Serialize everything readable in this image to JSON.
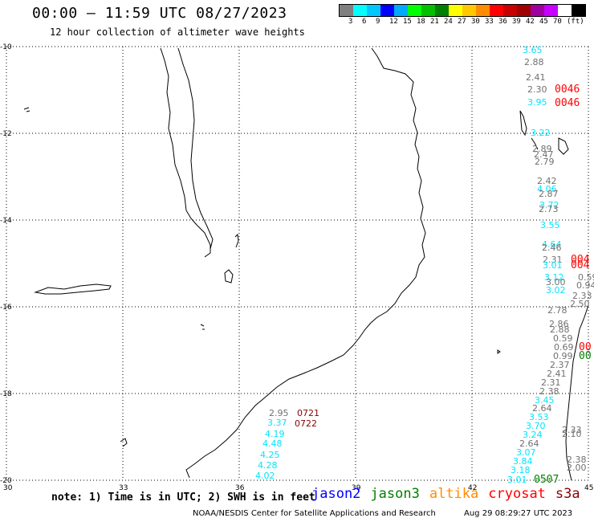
{
  "header": {
    "title": "00:00 — 11:59 UTC 08/27/2023",
    "subtitle": "12 hour collection of altimeter wave heights"
  },
  "legend": {
    "colors": [
      "#808080",
      "#00ffff",
      "#00c8ff",
      "#0000ff",
      "#00aaff",
      "#00ff00",
      "#00c000",
      "#008000",
      "#ffff00",
      "#ffc800",
      "#ff8c00",
      "#ff0000",
      "#c80000",
      "#a00000",
      "#a000a0",
      "#c800ff",
      "#ffffff",
      "#000000"
    ],
    "labels": [
      "3",
      "6",
      "9",
      "12",
      "15",
      "18",
      "21",
      "24",
      "27",
      "30",
      "33",
      "36",
      "39",
      "42",
      "45",
      "70",
      "(ft)"
    ]
  },
  "axes": {
    "x_ticks": [
      "30",
      "33",
      "36",
      "39",
      "42",
      "45"
    ],
    "y_ticks": [
      "-10",
      "-12",
      "-14",
      "-16",
      "-18",
      "-20"
    ]
  },
  "track_colors": {
    "gray": "#707070",
    "cyan": "#00e5ff",
    "darkred": "#8b0000",
    "red": "#ff0000",
    "green": "#008000"
  },
  "tracks": {
    "west_values": [
      {
        "v": "2.95",
        "c": "gray"
      },
      {
        "v": "3.37",
        "c": "cyan"
      },
      {
        "v": "4.19",
        "c": "cyan"
      },
      {
        "v": "4.48",
        "c": "cyan"
      },
      {
        "v": "4.25",
        "c": "cyan"
      },
      {
        "v": "4.28",
        "c": "cyan"
      },
      {
        "v": "4.02",
        "c": "cyan"
      }
    ],
    "west_times": [
      "0721",
      "0722"
    ],
    "east_values": [
      {
        "v": "3.65",
        "c": "cyan"
      },
      {
        "v": "2.88",
        "c": "gray"
      },
      {
        "v": "2.41",
        "c": "gray"
      },
      {
        "v": "2.30",
        "c": "gray"
      },
      {
        "v": "3.95",
        "c": "cyan"
      },
      {
        "v": "3.22",
        "c": "cyan"
      },
      {
        "v": "2.89",
        "c": "gray"
      },
      {
        "v": "2.47",
        "c": "gray"
      },
      {
        "v": "2.79",
        "c": "gray"
      },
      {
        "v": "2.42",
        "c": "gray"
      },
      {
        "v": "4.06",
        "c": "cyan"
      },
      {
        "v": "2.87",
        "c": "gray"
      },
      {
        "v": "3.72",
        "c": "cyan"
      },
      {
        "v": "2.73",
        "c": "gray"
      },
      {
        "v": "3.55",
        "c": "cyan"
      },
      {
        "v": "4.64",
        "c": "cyan"
      },
      {
        "v": "2.46",
        "c": "gray"
      },
      {
        "v": "2.31",
        "c": "gray"
      },
      {
        "v": "3.01",
        "c": "cyan"
      },
      {
        "v": "3.12",
        "c": "cyan"
      },
      {
        "v": "3.00",
        "c": "gray"
      },
      {
        "v": "3.02",
        "c": "cyan"
      },
      {
        "v": "2.78",
        "c": "gray"
      },
      {
        "v": "2.86",
        "c": "gray"
      },
      {
        "v": "2.88",
        "c": "gray"
      },
      {
        "v": "0.59",
        "c": "gray"
      },
      {
        "v": "0.69",
        "c": "gray"
      },
      {
        "v": "0.99",
        "c": "gray"
      },
      {
        "v": "2.37",
        "c": "gray"
      },
      {
        "v": "2.41",
        "c": "gray"
      },
      {
        "v": "2.31",
        "c": "gray"
      },
      {
        "v": "2.38",
        "c": "gray"
      },
      {
        "v": "3.45",
        "c": "cyan"
      },
      {
        "v": "2.64",
        "c": "gray"
      },
      {
        "v": "3.53",
        "c": "cyan"
      },
      {
        "v": "3.70",
        "c": "cyan"
      },
      {
        "v": "3.24",
        "c": "cyan"
      },
      {
        "v": "2.64",
        "c": "gray"
      },
      {
        "v": "3.07",
        "c": "cyan"
      },
      {
        "v": "3.84",
        "c": "cyan"
      },
      {
        "v": "3.18",
        "c": "cyan"
      },
      {
        "v": "3.01",
        "c": "cyan"
      },
      {
        "v": "2.33",
        "c": "gray"
      },
      {
        "v": "2.10",
        "c": "gray"
      },
      {
        "v": "2.38",
        "c": "gray"
      },
      {
        "v": "2.00",
        "c": "gray"
      },
      {
        "v": "2.50",
        "c": "gray"
      },
      {
        "v": "2.33",
        "c": "gray"
      },
      {
        "v": "0.94",
        "c": "gray"
      },
      {
        "v": "0.59",
        "c": "gray"
      }
    ],
    "east_times": [
      {
        "t": "0046",
        "c": "red"
      },
      {
        "t": "0046",
        "c": "red"
      },
      {
        "t": "004",
        "c": "red"
      },
      {
        "t": "004",
        "c": "red"
      },
      {
        "t": "00",
        "c": "red"
      },
      {
        "t": "00",
        "c": "green"
      },
      {
        "t": "0507",
        "c": "green"
      }
    ]
  },
  "footer": {
    "note": "note: 1) Time is in UTC; 2) SWH is in feet",
    "satellites": [
      {
        "name": "jason2",
        "color": "#0000ff"
      },
      {
        "name": "jason3",
        "color": "#008000"
      },
      {
        "name": "altika",
        "color": "#ff8c00"
      },
      {
        "name": "cryosat",
        "color": "#ff0000"
      },
      {
        "name": "s3a",
        "color": "#8b0000"
      }
    ],
    "credit": "NOAA/NESDIS Center for Satellite Applications and Research",
    "stamp": "Aug 29 08:29:27 UTC 2023"
  }
}
